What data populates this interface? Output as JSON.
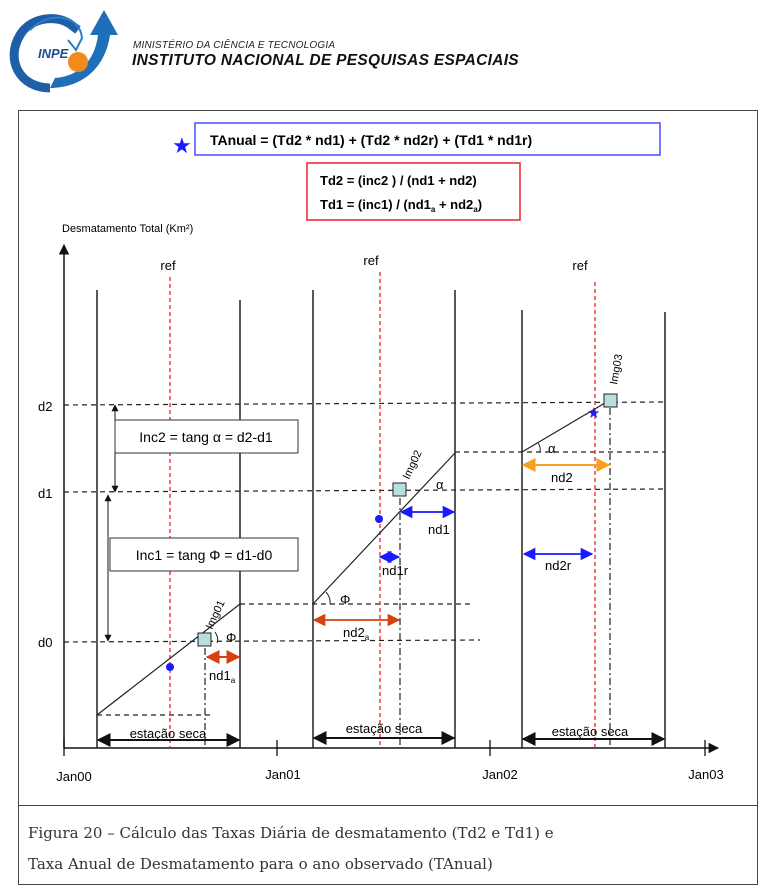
{
  "header": {
    "logo_text": "INPE",
    "ministry": "MINISTÉRIO DA CIÊNCIA E TECNOLOGIA",
    "institute": "INSTITUTO NACIONAL DE PESQUISAS ESPACIAIS"
  },
  "formulas": {
    "tanual": "TAnual = (Td2 *  nd1) + (Td2  * nd2r) + (Td1  * nd1r)",
    "td2": "Td2 = (inc2 ) / (nd1 + nd2)",
    "td1_main": "Td1 = (inc1) / (nd1",
    "td1_mid": " + nd2",
    "td1_end": ")",
    "sub_a": "a"
  },
  "axes": {
    "ylabel": "Desmatamento Total (Km²)",
    "y_ticks": [
      "d2",
      "d1",
      "d0"
    ],
    "x_ticks": [
      "Jan00",
      "Jan01",
      "Jan02",
      "Jan03"
    ]
  },
  "ref_label": "ref",
  "boxes": {
    "inc2": "Inc2 = tang α = d2-d1",
    "inc1": "Inc1 = tang Φ = d1-d0"
  },
  "images": [
    "Img01",
    "Img02",
    "Img03"
  ],
  "angles": {
    "phi": "Φ",
    "alpha": "α"
  },
  "intervals": {
    "nd1a": "nd1",
    "nd2a": "nd2",
    "nd1": "nd1",
    "nd1r": "nd1r",
    "nd2": "nd2",
    "nd2r": "nd2r"
  },
  "season_label": "estação seca",
  "caption": {
    "line1": "Figura 20 – Cálculo das Taxas Diária de desmatamento (Td2 e Td1) e",
    "line2": "Taxa Anual de Desmatamento para o ano observado (TAnual)"
  },
  "colors": {
    "blue": "#1a1aff",
    "red": "#e8202a",
    "orange_red": "#d9400f",
    "orange": "#f5a020",
    "square": "#b9dede"
  }
}
